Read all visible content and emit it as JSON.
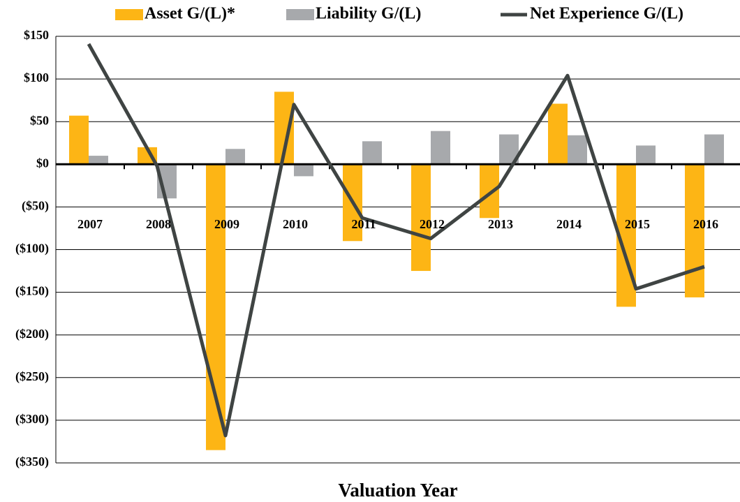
{
  "chart_data": {
    "type": "bar_line",
    "x_label": "Valuation Year",
    "categories": [
      "2007",
      "2008",
      "2009",
      "2010",
      "2011",
      "2012",
      "2013",
      "2014",
      "2015",
      "2016"
    ],
    "series": [
      {
        "name": "Asset G/(L)*",
        "type": "bar",
        "color": "#fdb515",
        "values": [
          57,
          20,
          -335,
          85,
          -90,
          -125,
          -63,
          71,
          -167,
          -156
        ]
      },
      {
        "name": "Liability G/(L)",
        "type": "bar",
        "color": "#a7a9ac",
        "values": [
          10,
          -40,
          18,
          -14,
          27,
          39,
          35,
          34,
          22,
          35
        ]
      },
      {
        "name": "Net Experience G/(L)",
        "type": "line",
        "color": "#3f4443",
        "values": [
          141,
          -2,
          -318,
          70,
          -63,
          -87,
          -26,
          104,
          -146,
          -120
        ]
      }
    ],
    "ylim": [
      -350,
      150
    ],
    "yticks": [
      {
        "value": 150,
        "label": "$150"
      },
      {
        "value": 100,
        "label": "$100"
      },
      {
        "value": 50,
        "label": "$50"
      },
      {
        "value": 0,
        "label": "$0"
      },
      {
        "value": -50,
        "label": "($50)"
      },
      {
        "value": -100,
        "label": "($100)"
      },
      {
        "value": -150,
        "label": "($150)"
      },
      {
        "value": -200,
        "label": "($200)"
      },
      {
        "value": -250,
        "label": "($250)"
      },
      {
        "value": -300,
        "label": "($300)"
      },
      {
        "value": -350,
        "label": "($350)"
      }
    ],
    "grid": true,
    "legend": "top"
  }
}
